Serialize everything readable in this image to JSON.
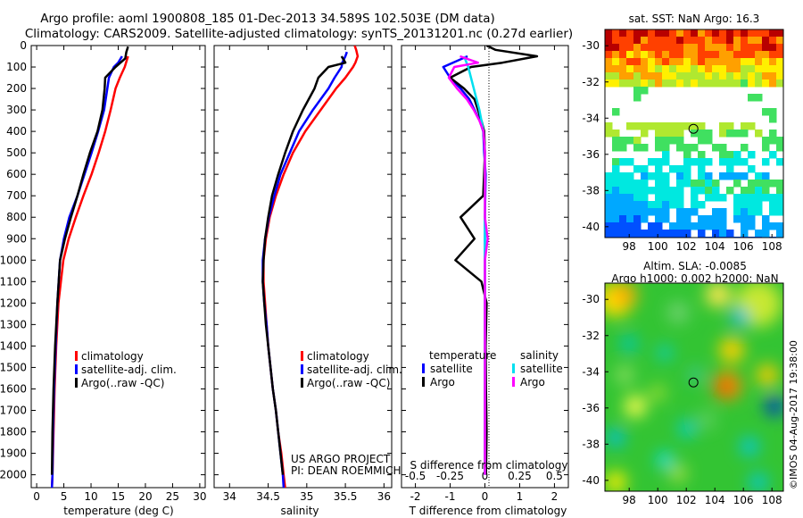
{
  "header": {
    "line1": "Argo profile: aoml 1900808_185 01-Dec-2013 34.589S 102.503E (DM data)",
    "line2": "Climatology: CARS2009. Satellite-adjusted climatology: synTS_20131201.nc (0.27d earlier)"
  },
  "colors": {
    "climatology": "#ff0000",
    "satellite": "#0000ff",
    "argo": "#000000",
    "sal_satellite": "#00e0f0",
    "sal_argo": "#ff00ff"
  },
  "chart_data": [
    {
      "type": "line",
      "panel": "temperature",
      "xlabel": "temperature (deg C)",
      "ylabel": "",
      "xlim": [
        -1,
        31
      ],
      "ylim": [
        2060,
        0
      ],
      "xticks": [
        "0",
        "5",
        "10",
        "15",
        "20",
        "25",
        "30"
      ],
      "xtick_values": [
        0,
        5,
        10,
        15,
        20,
        25,
        30
      ],
      "yticks": [
        "0",
        "100",
        "200",
        "300",
        "400",
        "500",
        "600",
        "700",
        "800",
        "900",
        "1000",
        "1100",
        "1200",
        "1300",
        "1400",
        "1500",
        "1600",
        "1700",
        "1800",
        "1900",
        "2000"
      ],
      "ytick_values": [
        0,
        100,
        200,
        300,
        400,
        500,
        600,
        700,
        800,
        900,
        1000,
        1100,
        1200,
        1300,
        1400,
        1500,
        1600,
        1700,
        1800,
        1900,
        2000
      ],
      "legend": [
        "climatology",
        "satellite-adj. clim.",
        "Argo(..raw -QC)"
      ],
      "series": [
        {
          "name": "climatology",
          "color": "#ff0000",
          "y": [
            50,
            100,
            150,
            200,
            300,
            400,
            500,
            600,
            700,
            800,
            900,
            1000,
            1200,
            1400,
            1600,
            1800,
            2000,
            2060
          ],
          "x": [
            16.8,
            16.2,
            15.3,
            14.5,
            13.6,
            12.6,
            11.4,
            10.1,
            8.6,
            7.2,
            5.9,
            4.9,
            4.0,
            3.6,
            3.3,
            3.1,
            2.9,
            2.8
          ]
        },
        {
          "name": "satellite-adj. clim.",
          "color": "#0000ff",
          "y": [
            50,
            80,
            100,
            150,
            200,
            300,
            400,
            500,
            600,
            700,
            800,
            900,
            1000,
            1200,
            1400,
            1600,
            1800,
            2000,
            2060
          ],
          "x": [
            15.7,
            15.0,
            14.2,
            13.3,
            13.0,
            12.4,
            11.3,
            10.1,
            8.8,
            7.5,
            6.0,
            5.0,
            4.3,
            3.8,
            3.5,
            3.2,
            3.0,
            2.9,
            2.8
          ]
        },
        {
          "name": "Argo(..raw -QC)",
          "color": "#000000",
          "y": [
            5,
            30,
            60,
            100,
            150,
            200,
            300,
            400,
            500,
            600,
            700,
            800,
            900,
            1000,
            1200,
            1400,
            1600,
            1800,
            2000
          ],
          "x": [
            16.8,
            16.5,
            16.3,
            14.5,
            12.6,
            12.5,
            12.1,
            11.2,
            9.8,
            8.6,
            7.5,
            6.3,
            5.2,
            4.3,
            3.8,
            3.4,
            3.1,
            2.9,
            2.8
          ]
        }
      ]
    },
    {
      "type": "line",
      "panel": "salinity",
      "xlabel": "salinity",
      "xlim": [
        33.8,
        36.1
      ],
      "ylim": [
        2060,
        0
      ],
      "xticks": [
        "34",
        "34.5",
        "35",
        "35.5",
        "36"
      ],
      "xtick_values": [
        34,
        34.5,
        35,
        35.5,
        36
      ],
      "legend": [
        "climatology",
        "satellite-adj. clim.",
        "Argo(..raw -QC)"
      ],
      "annotation": [
        "US ARGO PROJECT",
        "PI: DEAN ROEMMICH"
      ],
      "series": [
        {
          "name": "climatology",
          "color": "#ff0000",
          "y": [
            0,
            20,
            50,
            80,
            100,
            150,
            200,
            300,
            400,
            500,
            600,
            700,
            800,
            900,
            1000,
            1100,
            1200,
            1300,
            1400,
            1500,
            1600,
            1700,
            1800,
            1900,
            2000,
            2060
          ],
          "x": [
            35.62,
            35.64,
            35.66,
            35.63,
            35.6,
            35.5,
            35.38,
            35.18,
            34.98,
            34.82,
            34.7,
            34.6,
            34.52,
            34.47,
            34.44,
            34.44,
            34.46,
            34.48,
            34.5,
            34.53,
            34.56,
            34.6,
            34.63,
            34.67,
            34.7,
            34.72
          ]
        },
        {
          "name": "satellite-adj. clim.",
          "color": "#0000ff",
          "y": [
            30,
            50,
            80,
            100,
            150,
            200,
            300,
            400,
            500,
            600,
            700,
            800,
            900,
            1000,
            1100,
            1200,
            1300,
            1400,
            1500,
            1600,
            1700,
            1800,
            1900,
            2000,
            2060
          ],
          "x": [
            35.52,
            35.5,
            35.46,
            35.45,
            35.36,
            35.28,
            35.08,
            34.9,
            34.78,
            34.66,
            34.58,
            34.51,
            34.46,
            34.43,
            34.43,
            34.45,
            34.48,
            34.5,
            34.53,
            34.56,
            34.6,
            34.63,
            34.66,
            34.69,
            34.7
          ]
        },
        {
          "name": "Argo(..raw -QC)",
          "color": "#000000",
          "y": [
            50,
            80,
            100,
            150,
            200,
            300,
            400,
            500,
            600,
            700,
            800,
            900,
            1000,
            1100,
            1200,
            1300,
            1400,
            1500,
            1600,
            1700,
            1800,
            1900,
            2000
          ],
          "x": [
            35.45,
            35.5,
            35.28,
            35.15,
            35.1,
            34.95,
            34.82,
            34.72,
            34.63,
            34.55,
            34.5,
            34.46,
            34.44,
            34.43,
            34.45,
            34.47,
            34.5,
            34.53,
            34.56,
            34.6,
            34.63,
            34.66,
            34.69
          ]
        }
      ]
    },
    {
      "type": "line",
      "panel": "difference",
      "xlabel": "T difference from climatology",
      "x2label": "S difference from climatology",
      "xlim": [
        -2.4,
        2.4
      ],
      "ylim": [
        2060,
        0
      ],
      "xticks": [
        "-2",
        "-1",
        "0",
        "1",
        "2"
      ],
      "xtick_values": [
        -2,
        -1,
        0,
        1,
        2
      ],
      "x2ticks": [
        "-0.5",
        "-0.25",
        "0",
        "0.25",
        "0.5"
      ],
      "x2tick_values": [
        -0.5,
        -0.25,
        0,
        0.25,
        0.5
      ],
      "legend_titles": [
        "temperature",
        "salinity"
      ],
      "legend_temperature": [
        "satellite",
        "Argo"
      ],
      "legend_salinity": [
        "satellite",
        "Argo"
      ],
      "series": [
        {
          "name": "temperature satellite",
          "color": "#0000ff",
          "y": [
            50,
            100,
            150,
            200,
            250,
            300,
            350,
            400,
            500,
            600,
            800,
            1000,
            1200,
            1500,
            2000
          ],
          "x": [
            -0.5,
            -1.2,
            -1.0,
            -0.7,
            -0.45,
            -0.3,
            -0.15,
            -0.05,
            -0.02,
            0.02,
            0,
            0,
            0,
            0,
            0
          ]
        },
        {
          "name": "temperature Argo",
          "color": "#000000",
          "y": [
            0,
            20,
            50,
            80,
            100,
            150,
            200,
            250,
            300,
            350,
            400,
            500,
            700,
            800,
            900,
            1000,
            1100,
            1200,
            1400,
            1600,
            1800,
            2000
          ],
          "x": [
            0.05,
            0.3,
            1.5,
            0.5,
            -0.4,
            -1.0,
            -0.6,
            -0.3,
            -0.2,
            -0.1,
            -0.02,
            0,
            -0.05,
            -0.7,
            -0.3,
            -0.85,
            -0.1,
            0.05,
            0.02,
            0.03,
            0.05,
            0.03
          ]
        },
        {
          "name": "salinity satellite",
          "color": "#00e0f0",
          "y": [
            50,
            100,
            150,
            200,
            250,
            300,
            400,
            500,
            600,
            800,
            1000,
            1200,
            1500,
            2000
          ],
          "x": [
            -0.15,
            -0.12,
            -0.1,
            -0.08,
            -0.06,
            -0.04,
            -0.01,
            0,
            0,
            0,
            0,
            0,
            0,
            0
          ]
        },
        {
          "name": "salinity Argo",
          "color": "#ff00ff",
          "y": [
            50,
            80,
            100,
            150,
            200,
            250,
            300,
            350,
            400,
            500,
            600,
            800,
            900,
            1000,
            1200,
            1500,
            2000
          ],
          "x": [
            -0.18,
            -0.05,
            -0.22,
            -0.26,
            -0.2,
            -0.13,
            -0.08,
            -0.04,
            -0.01,
            0,
            0,
            0,
            0.02,
            0,
            0,
            0,
            0
          ]
        }
      ]
    },
    {
      "type": "heatmap",
      "panel": "sst_map",
      "title": "sat. SST: NaN Argo: 16.3",
      "xticks": [
        "98",
        "100",
        "102",
        "104",
        "106",
        "108"
      ],
      "xtick_values": [
        98,
        100,
        102,
        104,
        106,
        108
      ],
      "yticks": [
        "-30",
        "-32",
        "-34",
        "-36",
        "-38",
        "-40"
      ],
      "ytick_values": [
        -30,
        -32,
        -34,
        -36,
        -38,
        -40
      ],
      "xlim": [
        96.3,
        108.8
      ],
      "ylim": [
        -40.6,
        -29.1
      ],
      "marker": {
        "lon": 102.5,
        "lat": -34.59
      }
    },
    {
      "type": "heatmap",
      "panel": "sla_map",
      "title_lines": [
        "Altim. SLA: -0.0085",
        "Argo h1000: 0.002 h2000: NaN"
      ],
      "xticks": [
        "98",
        "100",
        "102",
        "104",
        "106",
        "108"
      ],
      "xtick_values": [
        98,
        100,
        102,
        104,
        106,
        108
      ],
      "yticks": [
        "-30",
        "-32",
        "-34",
        "-36",
        "-38",
        "-40"
      ],
      "ytick_values": [
        -30,
        -32,
        -34,
        -36,
        -38,
        -40
      ],
      "xlim": [
        96.3,
        108.8
      ],
      "ylim": [
        -40.6,
        -29.1
      ],
      "marker": {
        "lon": 102.5,
        "lat": -34.59
      },
      "credit": "©IMOS 04-Aug-2017 19:38:00"
    }
  ]
}
